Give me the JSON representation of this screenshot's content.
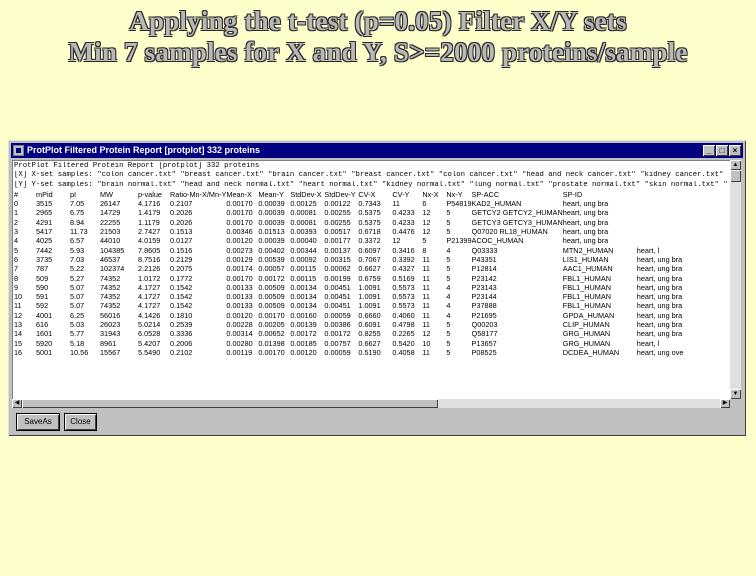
{
  "slide": {
    "title_line1": "Applying the t-test (p=0.05) Filter X/Y sets",
    "title_line2": "Min 7 samples for X and Y, S>=2000 proteins/sample"
  },
  "window": {
    "title": "ProtPlot Filtered Protein Report [protplot] 332 proteins",
    "minimize_glyph": "_",
    "maximize_glyph": "□",
    "close_glyph": "×"
  },
  "report": {
    "header_lines": [
      "ProtPlot Filtered Protein Report [protplot] 332 proteins",
      "[X] X-set samples: \"colon cancer.txt\" \"breast cancer.txt\" \"brain cancer.txt\" \"breast cancer.txt\" \"colon cancer.txt\" \"head and neck cancer.txt\" \"kidney cancer.txt\" \"lung cancer.txt\" \"pancreas cancer.txt\"",
      "[Y] Y-set samples: \"brain normal.txt\" \"head and neck normal.txt\" \"heart normal.txt\" \"kidney normal.txt\" \"lung normal.txt\" \"prostate normal.txt\" \"skin normal.txt\" \"uterus normal.txt\""
    ],
    "columns": [
      "#",
      "mPid",
      "pI",
      "MW",
      "p-value",
      "Ratio-Mn-X/Mn-Y",
      "Mean-X",
      "Mean-Y",
      "StdDev-X",
      "StdDev-Y",
      "CV-X",
      "CV-Y",
      "Nx-X",
      "Nx-Y",
      "SP-ACC",
      "SP-ID"
    ],
    "rows": [
      [
        "0",
        "3515",
        "7.05",
        "26147",
        "4.1716",
        "0.2107",
        "0.00170",
        "0.00039",
        "0.00125",
        "0.00122",
        "0.7343",
        "11",
        "6",
        "P54819",
        "KAD2_HUMAN",
        "heart, ung bra"
      ],
      [
        "1",
        "2965",
        "6.75",
        "14729",
        "1.4179",
        "0.2026",
        "0.00170",
        "0.00039",
        "0.00081",
        "0.00255",
        "0.5375",
        "0.4233",
        "12",
        "5",
        "GETCY2 GETCY2_HUMAN",
        "heart, ung bra"
      ],
      [
        "2",
        "4291",
        "8.94",
        "22255",
        "1.1179",
        "0.2026",
        "0.00170",
        "0.00039",
        "0.00081",
        "0.00255",
        "0.5375",
        "0.4233",
        "12",
        "5",
        "GETCY3 GETCY3_HUMAN",
        "heart, ung bra"
      ],
      [
        "3",
        "5417",
        "11.73",
        "21503",
        "2.7427",
        "0.1513",
        "0.00346",
        "0.01513",
        "0.00393",
        "0.00517",
        "0.6718",
        "0.4476",
        "12",
        "5",
        "Q07020 RL18_HUMAN",
        "heart, ung bra"
      ],
      [
        "4",
        "4025",
        "6.57",
        "44010",
        "4.0159",
        "0.0127",
        "0.00120",
        "0.00039",
        "0.00040",
        "0.00177",
        "0.3372",
        "12",
        "5",
        "P21399",
        "ACOC_HUMAN",
        "heart, ung bra"
      ],
      [
        "5",
        "7442",
        "5.93",
        "104385",
        "7.8605",
        "0.1516",
        "0.00273",
        "0.00402",
        "0.00344",
        "0.00137",
        "0.6097",
        "0.3416",
        "8",
        "4",
        "Q03333",
        "MTN2_HUMAN",
        "heart, l"
      ],
      [
        "6",
        "3735",
        "7.03",
        "46537",
        "8.7516",
        "0.2129",
        "0.00129",
        "0.00539",
        "0.00092",
        "0.00315",
        "0.7067",
        "0.3392",
        "11",
        "5",
        "P43351",
        "LIS1_HUMAN",
        "heart, ung bra"
      ],
      [
        "7",
        "787",
        "5.22",
        "102374",
        "2.2126",
        "0.2075",
        "0.00174",
        "0.00057",
        "0.00115",
        "0.00062",
        "0.6627",
        "0.4327",
        "11",
        "5",
        "P12814",
        "AAC1_HUMAN",
        "heart, ung bra"
      ],
      [
        "8",
        "509",
        "5.27",
        "74352",
        "1.0172",
        "0.1772",
        "0.00170",
        "0.00172",
        "0.00115",
        "0.00199",
        "0.6759",
        "0.5169",
        "11",
        "5",
        "P23142",
        "FBL1_HUMAN",
        "heart, ung bra"
      ],
      [
        "9",
        "590",
        "5.07",
        "74352",
        "4.1727",
        "0.1542",
        "0.00133",
        "0.00509",
        "0.00134",
        "0.00451",
        "1.0091",
        "0.5573",
        "11",
        "4",
        "P23143",
        "FBL1_HUMAN",
        "heart, ung bra"
      ],
      [
        "10",
        "591",
        "5.07",
        "74352",
        "4.1727",
        "0.1542",
        "0.00133",
        "0.00509",
        "0.00134",
        "0.00451",
        "1.0091",
        "0.5573",
        "11",
        "4",
        "P23144",
        "FBL1_HUMAN",
        "heart, ung bra"
      ],
      [
        "11",
        "592",
        "5.07",
        "74352",
        "4.1727",
        "0.1542",
        "0.00133",
        "0.00509",
        "0.00134",
        "0.00451",
        "1.0091",
        "0.5573",
        "11",
        "4",
        "P37888",
        "FBL1_HUMAN",
        "heart, ung bra"
      ],
      [
        "12",
        "4001",
        "6.25",
        "56016",
        "4.1426",
        "0.1810",
        "0.00120",
        "0.00170",
        "0.00160",
        "0.00059",
        "0.6660",
        "0.4060",
        "11",
        "4",
        "P21695",
        "GPDA_HUMAN",
        "heart, ung bra"
      ],
      [
        "13",
        "616",
        "5.03",
        "26023",
        "5.0214",
        "0.2539",
        "0.00228",
        "0.00205",
        "0.00139",
        "0.00386",
        "0.6091",
        "0.4798",
        "11",
        "5",
        "Q00203",
        "CLIP_HUMAN",
        "heart, ung bra"
      ],
      [
        "14",
        "1601",
        "5.77",
        "31943",
        "6.0528",
        "0.3336",
        "0.00314",
        "0.00652",
        "0.00172",
        "0.00172",
        "0.8255",
        "0.2265",
        "12",
        "5",
        "Q58177",
        "GRG_HUMAN",
        "heart, ung bra"
      ],
      [
        "15",
        "5920",
        "5.18",
        "8961",
        "5.4207",
        "0.2006",
        "0.00280",
        "0.01398",
        "0.00185",
        "0.00757",
        "0.6627",
        "0.5420",
        "10",
        "5",
        "P13657",
        "GRG_HUMAN",
        "heart, l"
      ],
      [
        "16",
        "5001",
        "10.56",
        "15567",
        "5.5490",
        "0.2102",
        "0.00119",
        "0.00170",
        "0.00120",
        "0.00059",
        "0.5190",
        "0.4058",
        "11",
        "5",
        "P08525",
        "DCDEA_HUMAN",
        "heart, ung ove"
      ]
    ]
  },
  "buttons": {
    "save_as": "SaveAs",
    "close": "Close"
  }
}
